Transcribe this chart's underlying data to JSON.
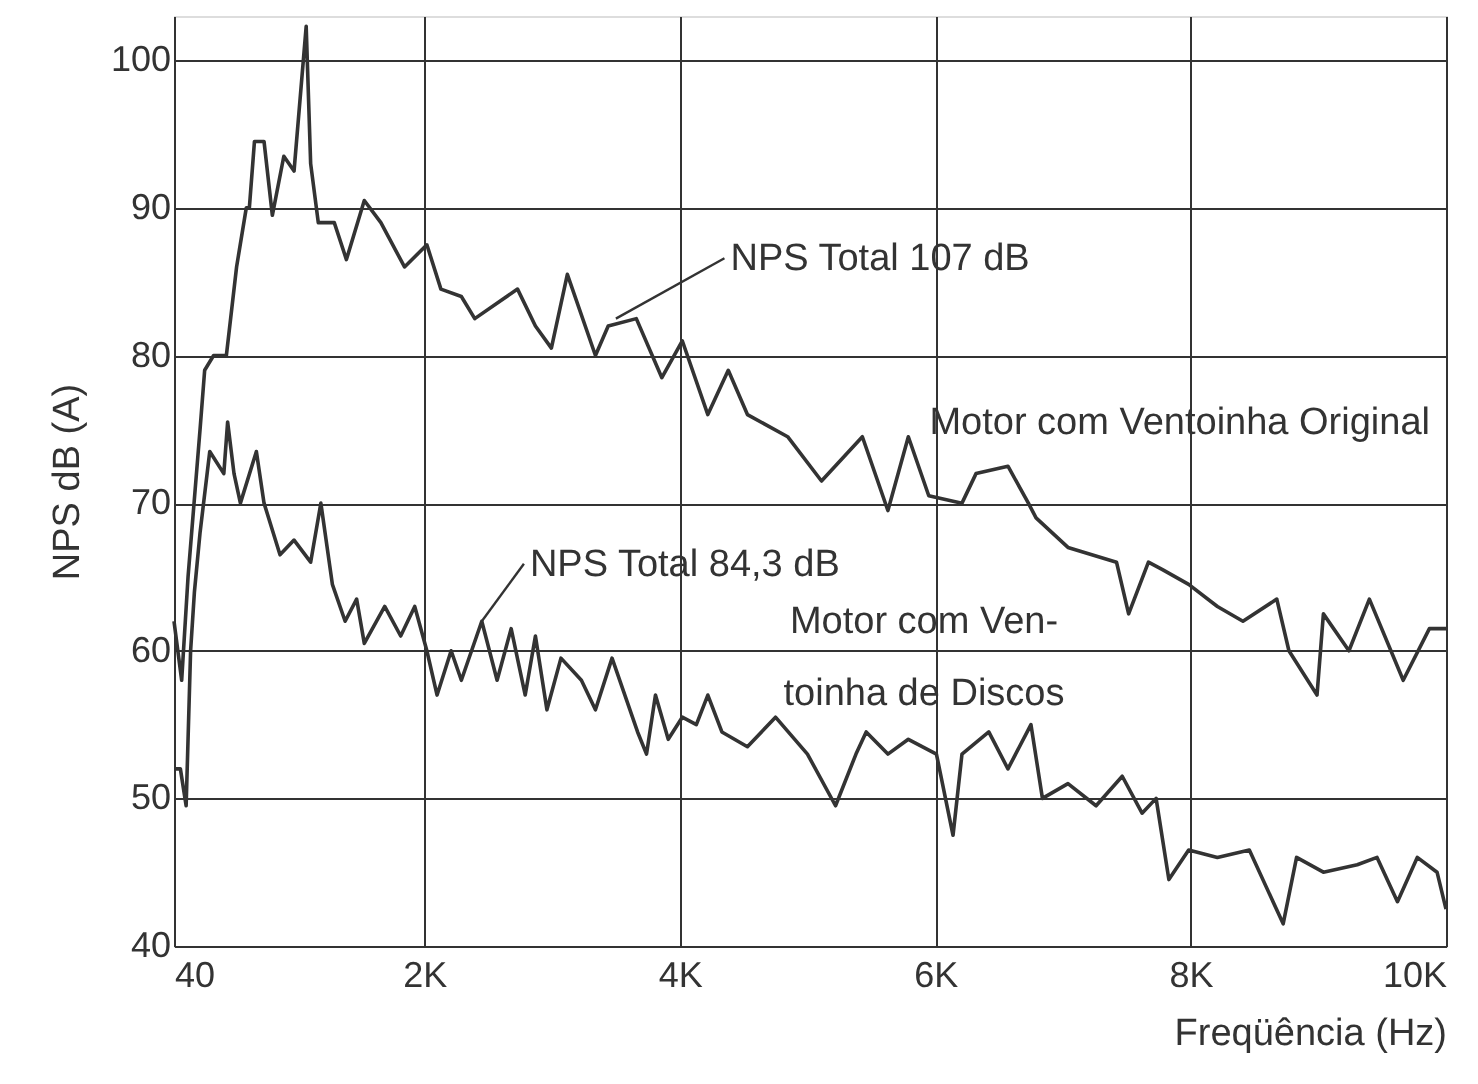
{
  "chart_data": {
    "type": "line",
    "xlabel": "Freqüência (Hz)",
    "ylabel": "NPS dB (A)",
    "xlim": [
      40,
      10000
    ],
    "ylim": [
      40,
      103
    ],
    "xticks": [
      40,
      {
        "value": 2000,
        "label": "2K"
      },
      {
        "value": 4000,
        "label": "4K"
      },
      {
        "value": 6000,
        "label": "6K"
      },
      {
        "value": 8000,
        "label": "8K"
      },
      {
        "value": 10000,
        "label": "10K"
      }
    ],
    "yticks": [
      40,
      50,
      60,
      70,
      80,
      90,
      100
    ],
    "grid": true,
    "marker": "none",
    "line_style": "solid",
    "series": [
      {
        "name": "Motor com Ventoinha Original",
        "color": "#333333",
        "x": [
          40,
          100,
          150,
          244,
          280,
          350,
          450,
          530,
          606,
          630,
          670,
          745,
          810,
          900,
          980,
          1075,
          1110,
          1170,
          1295,
          1390,
          1530,
          1660,
          1845,
          2020,
          2130,
          2290,
          2395,
          2730,
          2870,
          2995,
          3120,
          3340,
          3440,
          3660,
          3860,
          4020,
          4220,
          4380,
          4530,
          4845,
          5110,
          5430,
          5630,
          5790,
          5950,
          6210,
          6320,
          6570,
          6730,
          6790,
          7040,
          7420,
          7515,
          7670,
          7780,
          7985,
          8210,
          8410,
          8675,
          8770,
          8990,
          9040,
          9240,
          9400,
          9665,
          9870,
          10000
        ],
        "values": [
          62,
          58,
          65,
          75,
          79,
          80,
          80,
          86,
          90,
          90,
          94.5,
          94.5,
          89.5,
          93.5,
          92.5,
          102.3,
          93,
          89,
          89,
          86.5,
          90.5,
          89,
          86,
          87.5,
          84.5,
          84,
          82.5,
          84.5,
          82,
          80.5,
          85.5,
          80,
          82,
          82.5,
          78.5,
          81,
          76,
          79,
          76,
          74.5,
          71.5,
          74.5,
          69.5,
          74.5,
          70.5,
          70,
          72,
          72.5,
          70,
          69,
          67,
          66,
          62.5,
          66,
          65.5,
          64.5,
          63,
          62,
          63.5,
          60,
          57,
          62.5,
          60,
          63.5,
          58,
          61.5,
          61.5
        ]
      },
      {
        "name": "Motor com Ven-\ntoinha de Discos",
        "color": "#333333",
        "x": [
          40,
          90,
          135,
          170,
          200,
          244,
          320,
          430,
          460,
          510,
          560,
          685,
          745,
          870,
          980,
          1110,
          1190,
          1280,
          1380,
          1470,
          1530,
          1690,
          1815,
          1925,
          2020,
          2100,
          2210,
          2290,
          2450,
          2570,
          2680,
          2790,
          2870,
          2960,
          3070,
          3230,
          3340,
          3470,
          3670,
          3740,
          3810,
          3910,
          4020,
          4130,
          4220,
          4330,
          4530,
          4750,
          5000,
          5220,
          5380,
          5460,
          5630,
          5790,
          6010,
          6140,
          6210,
          6420,
          6570,
          6750,
          6840,
          7040,
          7260,
          7465,
          7620,
          7730,
          7830,
          7985,
          8210,
          8460,
          8725,
          8830,
          9040,
          9305,
          9460,
          9620,
          9775,
          9930,
          10000
        ],
        "values": [
          52,
          52,
          49.5,
          60,
          64,
          68,
          73.5,
          72,
          75.5,
          72,
          70,
          73.5,
          70,
          66.5,
          67.5,
          66,
          70,
          64.5,
          62,
          63.5,
          60.5,
          63,
          61,
          63,
          60,
          57,
          60,
          58,
          62,
          58,
          61.5,
          57,
          61,
          56,
          59.5,
          58,
          56,
          59.5,
          54.5,
          53,
          57,
          54,
          55.5,
          55,
          57,
          54.5,
          53.5,
          55.5,
          53,
          49.5,
          53,
          54.5,
          53,
          54,
          53,
          47.5,
          53,
          54.5,
          52,
          55,
          50,
          51,
          49.5,
          51.5,
          49,
          50,
          44.5,
          46.5,
          46,
          46.5,
          41.5,
          46,
          45,
          45.5,
          46,
          43,
          46,
          45,
          42.5
        ]
      }
    ],
    "annotations": [
      {
        "text": "NPS Total 107 dB",
        "x": 3500,
        "y": 82.5
      },
      {
        "text": "NPS Total 84,3 dB",
        "x": 2450,
        "y": 62
      }
    ]
  }
}
